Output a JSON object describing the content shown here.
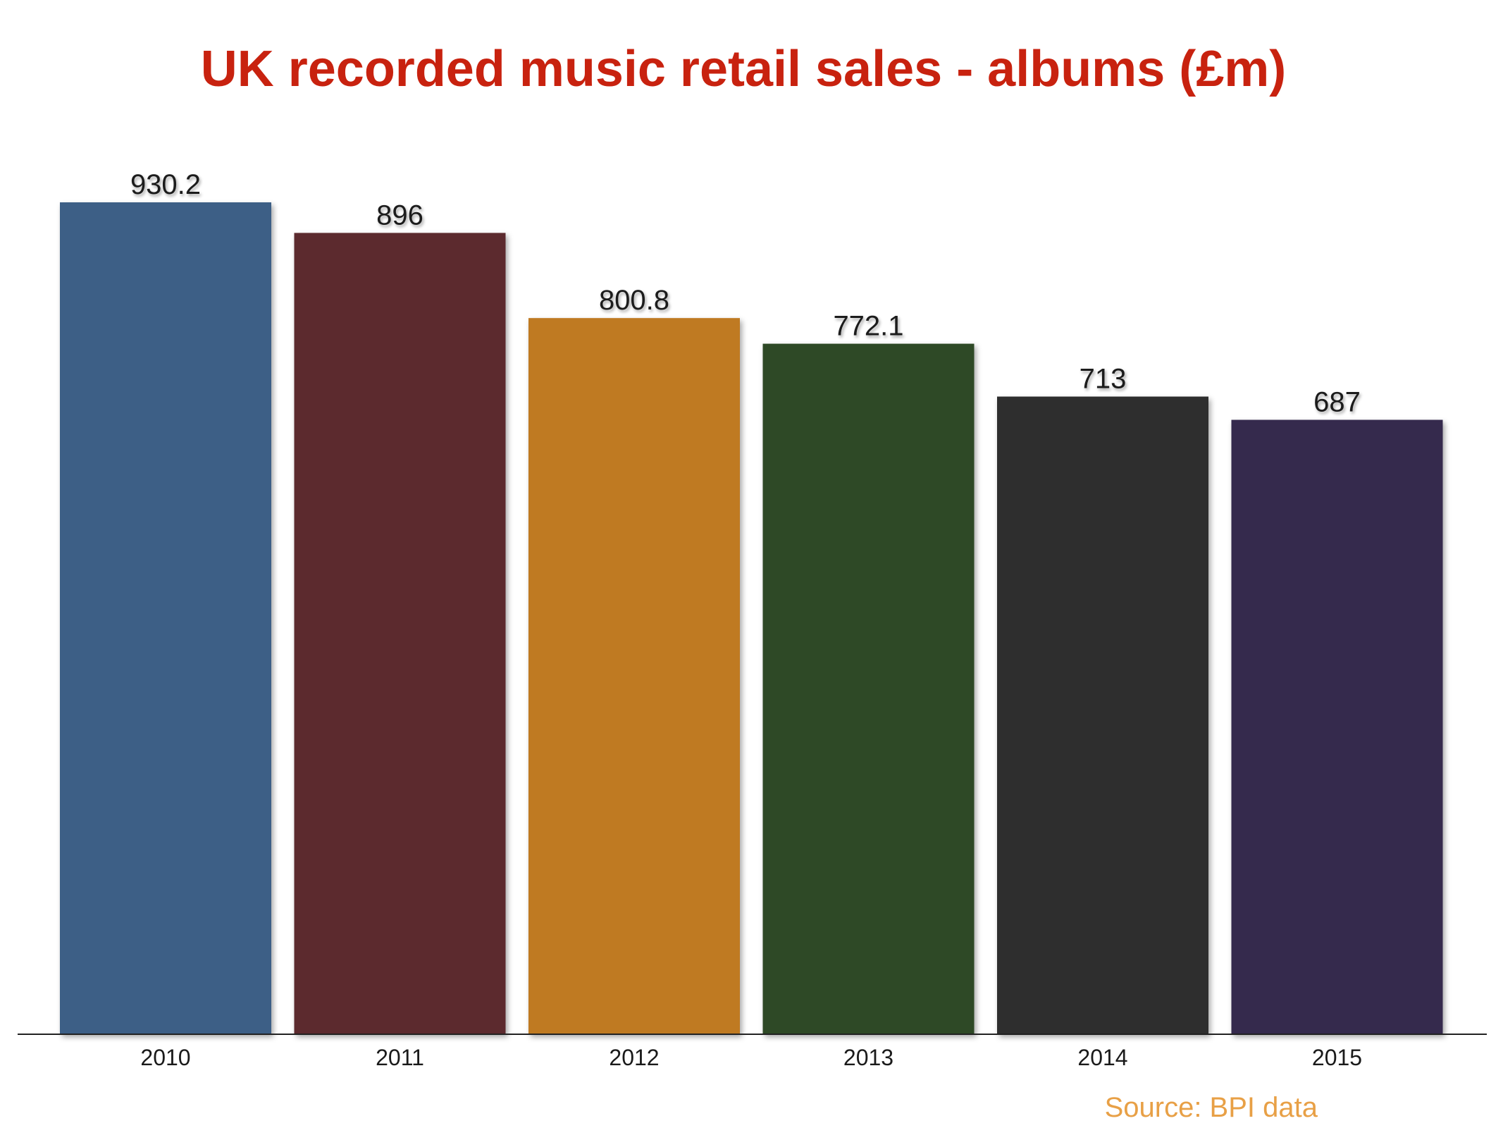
{
  "chart_data": {
    "type": "bar",
    "title": "UK recorded music retail sales - albums (£m)",
    "xlabel": "",
    "ylabel": "",
    "categories": [
      "2010",
      "2011",
      "2012",
      "2013",
      "2014",
      "2015"
    ],
    "values": [
      930.2,
      896,
      800.8,
      772.1,
      713,
      687
    ],
    "value_labels": [
      "930.2",
      "896",
      "800.8",
      "772.1",
      "713",
      "687"
    ],
    "bar_colors": [
      "#3e5f86",
      "#5c2a2e",
      "#bf7a24",
      "#2e4a25",
      "#2d2d2d",
      "#342b4e"
    ],
    "ylim": [
      0,
      930.2
    ],
    "grid": false,
    "legend": "none",
    "source": "Source: BPI data",
    "title_color": "#c8220f",
    "source_color": "#e8a046"
  }
}
